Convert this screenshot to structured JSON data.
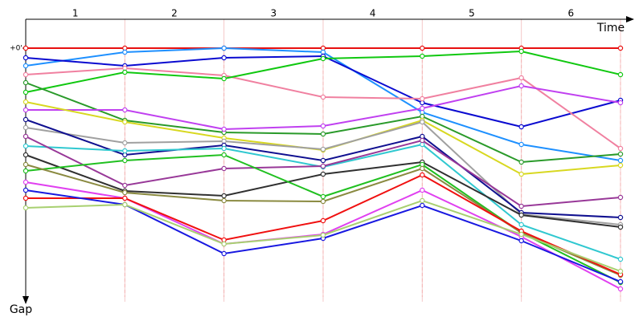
{
  "chart_data": {
    "type": "line",
    "x_label": "Time",
    "y_label": "Gap",
    "categories": [
      "1",
      "2",
      "3",
      "4",
      "5",
      "6"
    ],
    "x": [
      0,
      1,
      2,
      3,
      4,
      5,
      6
    ],
    "xlim": [
      0,
      6
    ],
    "ylim": [
      0,
      310
    ],
    "yticks": [
      {
        "value": 0,
        "label": "+0'"
      }
    ],
    "series": [
      {
        "color": "#e81010",
        "values": [
          0,
          0,
          0,
          0,
          0,
          0,
          0
        ]
      },
      {
        "color": "#1e90ff",
        "values": [
          22,
          5,
          0,
          5,
          80,
          120,
          140
        ]
      },
      {
        "color": "#0a0ad0",
        "values": [
          12,
          22,
          12,
          10,
          68,
          98,
          65
        ]
      },
      {
        "color": "#f080a0",
        "values": [
          33,
          25,
          34,
          61,
          63,
          37,
          125
        ]
      },
      {
        "color": "#10c810",
        "values": [
          55,
          30,
          38,
          13,
          10,
          4,
          33
        ]
      },
      {
        "color": "#2a9a2a",
        "values": [
          43,
          90,
          105,
          107,
          85,
          142,
          132
        ]
      },
      {
        "color": "#c040f0",
        "values": [
          77,
          77,
          101,
          97,
          75,
          47,
          68
        ]
      },
      {
        "color": "#d8d820",
        "values": [
          67,
          92,
          112,
          127,
          90,
          157,
          146
        ]
      },
      {
        "color": "#a0a0a0",
        "values": [
          99,
          118,
          116,
          126,
          92,
          207,
          220
        ]
      },
      {
        "color": "#101090",
        "values": [
          89,
          133,
          121,
          140,
          110,
          205,
          211
        ]
      },
      {
        "color": "#30c8d0",
        "values": [
          122,
          128,
          125,
          148,
          120,
          220,
          263
        ]
      },
      {
        "color": "#983898",
        "values": [
          110,
          171,
          150,
          147,
          115,
          197,
          186
        ]
      },
      {
        "color": "#303030",
        "values": [
          133,
          178,
          184,
          157,
          142,
          208,
          223
        ]
      },
      {
        "color": "#20c020",
        "values": [
          153,
          140,
          133,
          185,
          145,
          230,
          292
        ]
      },
      {
        "color": "#8a8a40",
        "values": [
          145,
          180,
          190,
          191,
          150,
          230,
          283
        ]
      },
      {
        "color": "#e040f0",
        "values": [
          167,
          187,
          244,
          232,
          177,
          235,
          300
        ]
      },
      {
        "color": "#f01010",
        "values": [
          187,
          187,
          239,
          215,
          158,
          228,
          282
        ]
      },
      {
        "color": "#1818e0",
        "values": [
          177,
          195,
          256,
          237,
          196,
          240,
          291
        ]
      },
      {
        "color": "#a8d070",
        "values": [
          199,
          195,
          244,
          233,
          190,
          232,
          278
        ]
      }
    ]
  }
}
